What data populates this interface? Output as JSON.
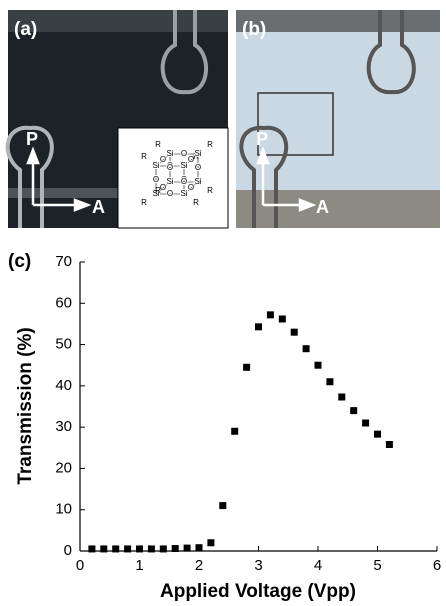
{
  "panels": {
    "a": {
      "label": "(a)",
      "polarizer": "P",
      "analyzer": "A"
    },
    "b": {
      "label": "(b)",
      "polarizer": "P",
      "analyzer": "A"
    }
  },
  "molecule": {
    "si": [
      "Si",
      "Si",
      "Si",
      "Si",
      "Si",
      "Si",
      "Si",
      "Si"
    ],
    "o": [
      "O",
      "O",
      "O",
      "O",
      "O",
      "O",
      "O",
      "O",
      "O",
      "O",
      "O",
      "O"
    ],
    "r": [
      "R",
      "R",
      "R",
      "R",
      "R",
      "R",
      "R",
      "R"
    ]
  },
  "chart_data": {
    "type": "scatter",
    "panel_label": "(c)",
    "x_label": "Applied Voltage (Vpp)",
    "y_label": "Transmission (%)",
    "x": [
      0.2,
      0.4,
      0.6,
      0.8,
      1.0,
      1.2,
      1.4,
      1.6,
      1.8,
      2.0,
      2.2,
      2.4,
      2.6,
      2.8,
      3.0,
      3.2,
      3.4,
      3.6,
      3.8,
      4.0,
      4.2,
      4.4,
      4.6,
      4.8,
      5.0,
      5.2
    ],
    "values": [
      0.5,
      0.5,
      0.5,
      0.5,
      0.5,
      0.5,
      0.5,
      0.6,
      0.7,
      0.8,
      2,
      11,
      29,
      44.5,
      54.3,
      57.2,
      56.2,
      53,
      49,
      45,
      41,
      37.3,
      34,
      31,
      28.3,
      25.8
    ],
    "color": "#000000",
    "xlim": [
      0,
      6
    ],
    "ylim": [
      0,
      70
    ],
    "xticks": [
      0,
      1,
      2,
      3,
      4,
      5,
      6
    ],
    "yticks": [
      0,
      10,
      20,
      30,
      40,
      50,
      60,
      70
    ],
    "grid": false
  }
}
